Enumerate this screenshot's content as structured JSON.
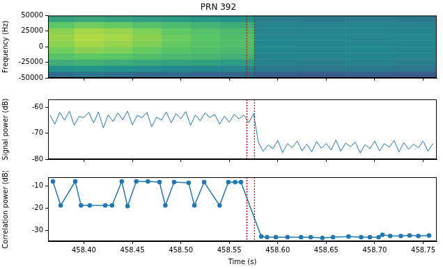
{
  "chart_data": [
    {
      "type": "heatmap",
      "title": "PRN 392",
      "ylabel": "Frequency (Hz)",
      "grid": false,
      "tick_labels": "y",
      "xlim": [
        458.363,
        458.764
      ],
      "xticks": [
        {
          "value": 458.4,
          "label": "458.40"
        },
        {
          "value": 458.45,
          "label": "458.45"
        },
        {
          "value": 458.5,
          "label": "458.50"
        },
        {
          "value": 458.55,
          "label": "458.55"
        },
        {
          "value": 458.6,
          "label": "458.60"
        },
        {
          "value": 458.65,
          "label": "458.65"
        },
        {
          "value": 458.7,
          "label": "458.70"
        },
        {
          "value": 458.75,
          "label": "458.75"
        }
      ],
      "ylim": [
        -50000,
        50000
      ],
      "yticks": [
        -50000,
        -25000,
        0,
        25000,
        50000
      ],
      "vlines": [
        458.568,
        458.576
      ],
      "x_edges": [
        458.363,
        458.39,
        458.42,
        458.45,
        458.48,
        458.51,
        458.54,
        458.576,
        458.62,
        458.67,
        458.72,
        458.764
      ],
      "y_edges": [
        -50000,
        -40000,
        -30000,
        -20000,
        -10000,
        0,
        10000,
        20000,
        30000,
        40000,
        50000
      ],
      "zlim": [
        0,
        1
      ],
      "cells": [
        [
          0.35,
          0.38,
          0.36,
          0.34,
          0.35,
          0.33,
          0.34,
          0.3,
          0.29,
          0.3,
          0.29
        ],
        [
          0.5,
          0.52,
          0.5,
          0.48,
          0.47,
          0.46,
          0.45,
          0.4,
          0.39,
          0.4,
          0.39
        ],
        [
          0.62,
          0.64,
          0.62,
          0.6,
          0.58,
          0.57,
          0.55,
          0.44,
          0.43,
          0.44,
          0.43
        ],
        [
          0.72,
          0.75,
          0.73,
          0.7,
          0.68,
          0.66,
          0.64,
          0.46,
          0.45,
          0.46,
          0.45
        ],
        [
          0.78,
          0.82,
          0.8,
          0.76,
          0.72,
          0.7,
          0.68,
          0.47,
          0.46,
          0.47,
          0.46
        ],
        [
          0.82,
          0.86,
          0.84,
          0.8,
          0.76,
          0.72,
          0.7,
          0.47,
          0.46,
          0.47,
          0.46
        ],
        [
          0.84,
          0.88,
          0.86,
          0.82,
          0.77,
          0.73,
          0.7,
          0.47,
          0.46,
          0.46,
          0.46
        ],
        [
          0.82,
          0.86,
          0.84,
          0.8,
          0.75,
          0.71,
          0.68,
          0.46,
          0.46,
          0.46,
          0.45
        ],
        [
          0.74,
          0.78,
          0.76,
          0.72,
          0.68,
          0.65,
          0.62,
          0.45,
          0.44,
          0.45,
          0.44
        ],
        [
          0.58,
          0.6,
          0.58,
          0.56,
          0.54,
          0.52,
          0.5,
          0.42,
          0.41,
          0.42,
          0.41
        ]
      ]
    },
    {
      "type": "line",
      "ylabel": "Signal power (dB)",
      "grid": false,
      "tick_labels": "y",
      "color": "#1f77b4",
      "xlim": [
        458.363,
        458.764
      ],
      "xticks": [
        {
          "value": 458.4,
          "label": "458.40"
        },
        {
          "value": 458.45,
          "label": "458.45"
        },
        {
          "value": 458.5,
          "label": "458.50"
        },
        {
          "value": 458.55,
          "label": "458.55"
        },
        {
          "value": 458.6,
          "label": "458.60"
        },
        {
          "value": 458.65,
          "label": "458.65"
        },
        {
          "value": 458.7,
          "label": "458.70"
        },
        {
          "value": 458.75,
          "label": "458.75"
        }
      ],
      "ylim": [
        -80,
        -57
      ],
      "yticks": [
        -80,
        -70,
        -60
      ],
      "vlines": [
        458.568,
        458.576
      ],
      "x": [
        458.365,
        458.37,
        458.375,
        458.38,
        458.385,
        458.39,
        458.395,
        458.4,
        458.405,
        458.41,
        458.415,
        458.42,
        458.425,
        458.43,
        458.435,
        458.44,
        458.445,
        458.45,
        458.455,
        458.46,
        458.465,
        458.47,
        458.475,
        458.48,
        458.485,
        458.49,
        458.495,
        458.5,
        458.505,
        458.51,
        458.515,
        458.52,
        458.525,
        458.53,
        458.535,
        458.54,
        458.545,
        458.55,
        458.555,
        458.56,
        458.565,
        458.57,
        458.575,
        458.58,
        458.585,
        458.59,
        458.595,
        458.6,
        458.605,
        458.61,
        458.615,
        458.62,
        458.625,
        458.63,
        458.635,
        458.64,
        458.645,
        458.65,
        458.655,
        458.66,
        458.665,
        458.67,
        458.675,
        458.68,
        458.685,
        458.69,
        458.695,
        458.7,
        458.705,
        458.71,
        458.715,
        458.72,
        458.725,
        458.73,
        458.735,
        458.74,
        458.745,
        458.75,
        458.755,
        458.76
      ],
      "values": [
        -63,
        -66.5,
        -62,
        -65,
        -61.5,
        -67,
        -63.5,
        -64,
        -62,
        -66,
        -61.8,
        -68,
        -63,
        -65.5,
        -62.2,
        -64.8,
        -61.5,
        -66.8,
        -63.2,
        -64,
        -62,
        -67.5,
        -63.8,
        -65,
        -61.8,
        -66,
        -62.5,
        -64.5,
        -61.6,
        -67,
        -63,
        -65.2,
        -62.2,
        -64,
        -62.8,
        -66.5,
        -63.5,
        -65.8,
        -62.8,
        -64.5,
        -63,
        -66,
        -62.5,
        -73.5,
        -77,
        -74.5,
        -76,
        -72.8,
        -77.5,
        -74,
        -75.5,
        -73,
        -76.8,
        -74.2,
        -77.2,
        -73.2,
        -75.8,
        -74,
        -76.5,
        -72.6,
        -77,
        -73.8,
        -75.2,
        -73.4,
        -77.6,
        -74.4,
        -76,
        -73,
        -76.8,
        -74,
        -75.4,
        -72.8,
        -77.2,
        -73.6,
        -76.2,
        -74.2,
        -75.6,
        -73,
        -77,
        -74
      ]
    },
    {
      "type": "line",
      "xlabel": "Time (s)",
      "ylabel": "Correlation power (dB)",
      "grid": false,
      "color": "#1f77b4",
      "marker": "circle",
      "xlim": [
        458.363,
        458.764
      ],
      "xticks": [
        {
          "value": 458.4,
          "label": "458.40"
        },
        {
          "value": 458.45,
          "label": "458.45"
        },
        {
          "value": 458.5,
          "label": "458.50"
        },
        {
          "value": 458.55,
          "label": "458.55"
        },
        {
          "value": 458.6,
          "label": "458.60"
        },
        {
          "value": 458.65,
          "label": "458.65"
        },
        {
          "value": 458.7,
          "label": "458.70"
        },
        {
          "value": 458.75,
          "label": "458.75"
        }
      ],
      "ylim": [
        -35,
        -6
      ],
      "yticks": [
        -30,
        -20,
        -10
      ],
      "vlines": [
        458.568,
        458.576
      ],
      "x": [
        458.368,
        458.376,
        458.391,
        458.397,
        458.406,
        458.422,
        458.429,
        458.439,
        458.445,
        458.454,
        458.466,
        458.478,
        458.484,
        458.493,
        458.508,
        458.514,
        458.524,
        458.54,
        458.549,
        458.556,
        458.562,
        458.583,
        458.589,
        458.598,
        458.61,
        458.624,
        458.634,
        458.646,
        458.657,
        458.673,
        458.686,
        458.695,
        458.704,
        458.708,
        458.716,
        458.727,
        458.736,
        458.745,
        458.756
      ],
      "values": [
        -7.9,
        -18.8,
        -7.9,
        -18.8,
        -18.8,
        -18.8,
        -18.8,
        -7.9,
        -19.1,
        -7.9,
        -7.9,
        -8.2,
        -18.8,
        -8.2,
        -8.5,
        -18.8,
        -8.2,
        -18.8,
        -8.2,
        -8.2,
        -8.2,
        -32.9,
        -33.2,
        -33.2,
        -33.2,
        -33.2,
        -33.2,
        -33.5,
        -33.2,
        -32.9,
        -33.2,
        -33.2,
        -33.2,
        -32.1,
        -32.6,
        -32.6,
        -32.4,
        -32.6,
        -32.4
      ]
    }
  ]
}
